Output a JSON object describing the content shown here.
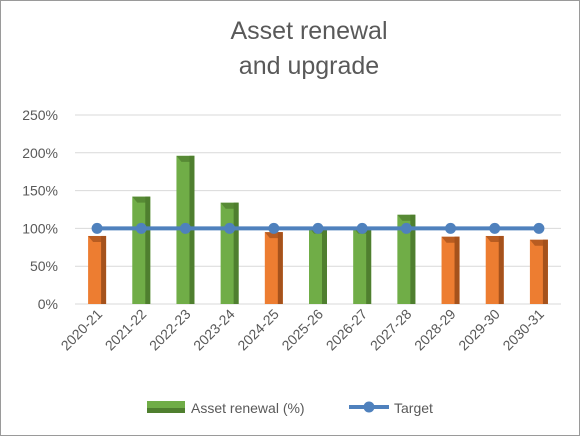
{
  "chart_data": {
    "type": "bar",
    "title": [
      "Asset renewal",
      "and upgrade"
    ],
    "categories": [
      "2020-21",
      "2021-22",
      "2022-23",
      "2023-24",
      "2024-25",
      "2025-26",
      "2026-27",
      "2027-28",
      "2028-29",
      "2029-30",
      "2030-31"
    ],
    "series": [
      {
        "name": "Asset renewal (%)",
        "type": "bar",
        "values": [
          90,
          142,
          196,
          134,
          95,
          101,
          101,
          118,
          89,
          90,
          85
        ]
      },
      {
        "name": "Target",
        "type": "line",
        "values": [
          100,
          100,
          100,
          100,
          100,
          100,
          100,
          100,
          100,
          100,
          100
        ]
      }
    ],
    "ylim": [
      0,
      250
    ],
    "yticks": [
      "0%",
      "50%",
      "100%",
      "150%",
      "200%",
      "250%"
    ],
    "grid": true,
    "legend_position": "bottom",
    "colors": {
      "above_target": "#70ad47",
      "above_target_dark": "#4f7f2f",
      "below_target": "#ed7d31",
      "below_target_dark": "#a5521c",
      "target_line": "#4f81bd",
      "gridline": "#d9d9d9"
    }
  }
}
